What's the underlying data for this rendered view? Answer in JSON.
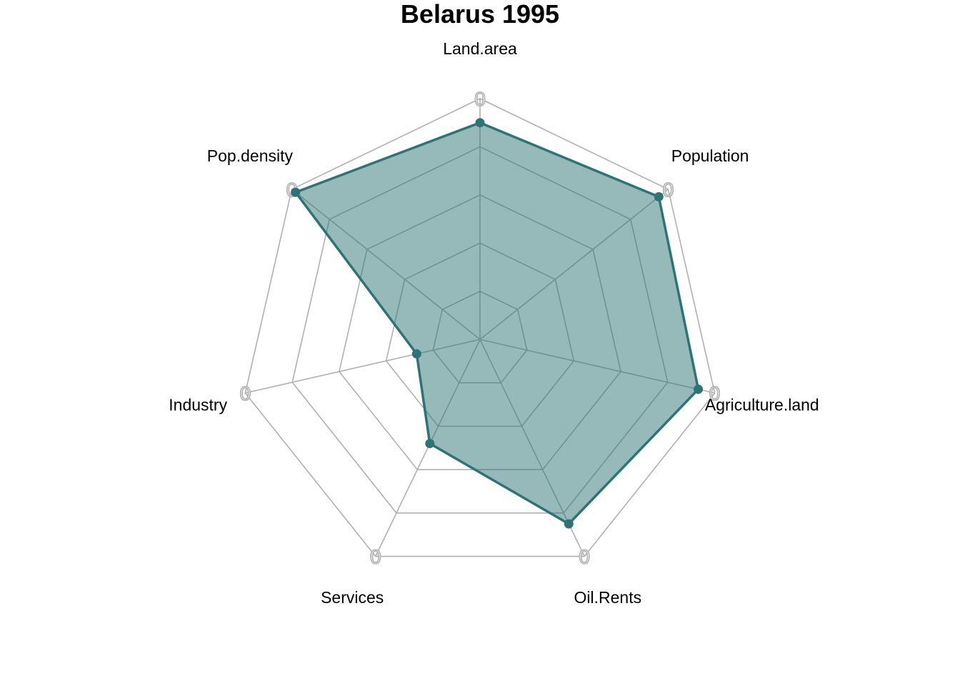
{
  "chart_data": {
    "type": "radar",
    "title": "Belarus 1995",
    "axes": [
      "Land.area",
      "Population",
      "Agriculture.land",
      "Oil.Rents",
      "Services",
      "Industry",
      "Pop.density"
    ],
    "axis_max_label": "0",
    "range": [
      0,
      1
    ],
    "grid_levels": 5,
    "grid": true,
    "series": [
      {
        "values": [
          0.9,
          0.95,
          0.93,
          0.85,
          0.48,
          0.27,
          0.98
        ]
      }
    ],
    "colors": {
      "line": "#2E7476",
      "fill": "#2E7476",
      "grid": "#B0B0B0"
    }
  }
}
